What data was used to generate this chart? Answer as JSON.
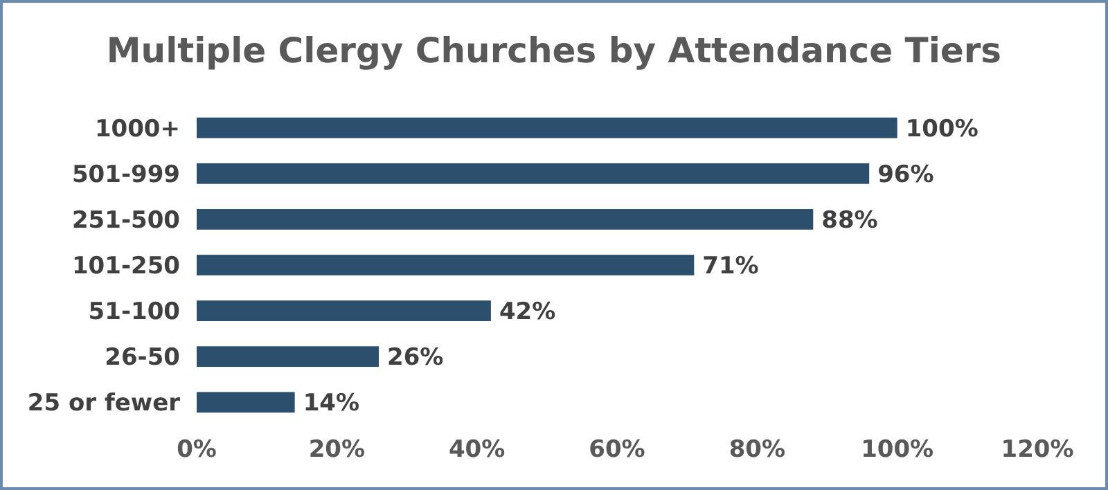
{
  "chart_data": {
    "type": "bar",
    "title": "Multiple Clergy Churches by Attendance Tiers",
    "orientation": "horizontal",
    "categories": [
      "1000+",
      "501-999",
      "251-500",
      "101-250",
      "51-100",
      "26-50",
      "25 or fewer"
    ],
    "values": [
      100,
      96,
      88,
      71,
      42,
      26,
      14
    ],
    "value_labels": [
      "100%",
      "96%",
      "88%",
      "71%",
      "42%",
      "26%",
      "14%"
    ],
    "color": "#2c4f6e",
    "xlim": [
      0,
      120
    ],
    "xticks": [
      {
        "value": 0,
        "label": "0%"
      },
      {
        "value": 20,
        "label": "20%"
      },
      {
        "value": 40,
        "label": "40%"
      },
      {
        "value": 60,
        "label": "60%"
      },
      {
        "value": 80,
        "label": "80%"
      },
      {
        "value": 100,
        "label": "100%"
      },
      {
        "value": 120,
        "label": "120%"
      }
    ],
    "grid": false
  }
}
